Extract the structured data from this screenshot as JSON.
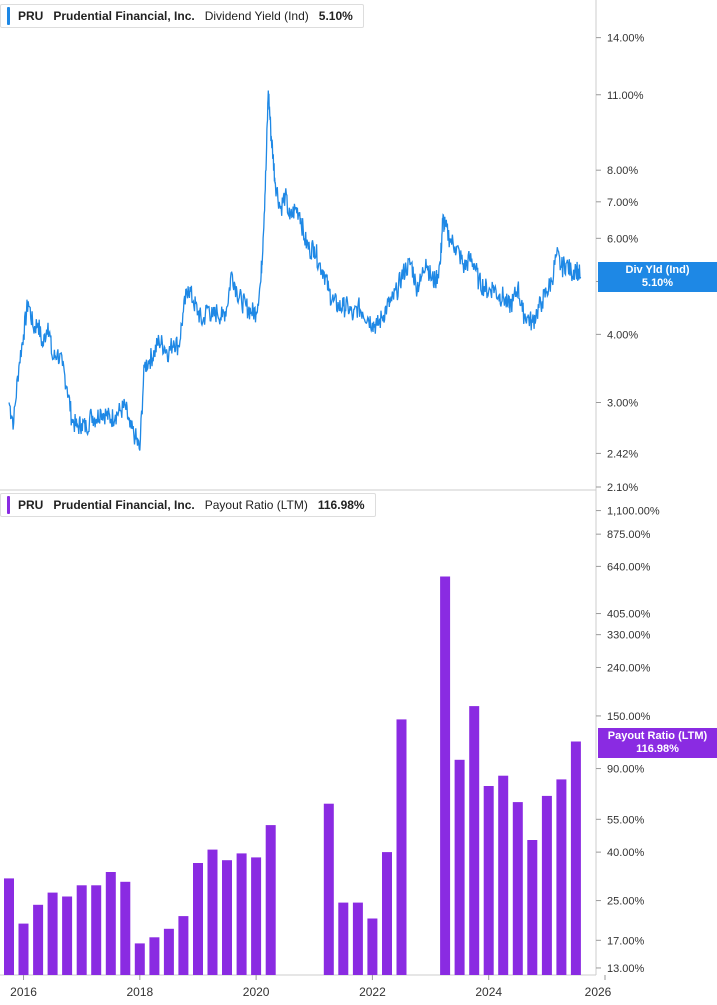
{
  "colors": {
    "yield": "#1E88E5",
    "payout": "#8A2BE2"
  },
  "yield_legend": {
    "ticker": "PRU",
    "company": "Prudential Financial, Inc.",
    "metric": "Dividend Yield (Ind)",
    "value": "5.10%"
  },
  "payout_legend": {
    "ticker": "PRU",
    "company": "Prudential Financial, Inc.",
    "metric": "Payout Ratio (LTM)",
    "value": "116.98%"
  },
  "yield_badge": {
    "label": "Div Yld (Ind)",
    "value": "5.10%"
  },
  "payout_badge": {
    "label": "Payout Ratio (LTM)",
    "value": "116.98%"
  },
  "chart_data": [
    {
      "type": "line",
      "scale": "log",
      "series": [
        {
          "name": "Dividend Yield (Ind)",
          "points": [
            [
              2015.75,
              3.0
            ],
            [
              2015.83,
              2.75
            ],
            [
              2015.92,
              3.5
            ],
            [
              2016.0,
              4.0
            ],
            [
              2016.08,
              4.6
            ],
            [
              2016.17,
              4.1
            ],
            [
              2016.25,
              4.2
            ],
            [
              2016.33,
              3.8
            ],
            [
              2016.42,
              4.2
            ],
            [
              2016.5,
              3.6
            ],
            [
              2016.58,
              3.7
            ],
            [
              2016.67,
              3.5
            ],
            [
              2016.75,
              3.2
            ],
            [
              2016.83,
              2.8
            ],
            [
              2016.92,
              2.7
            ],
            [
              2017.0,
              2.75
            ],
            [
              2017.08,
              2.7
            ],
            [
              2017.17,
              2.85
            ],
            [
              2017.25,
              2.8
            ],
            [
              2017.33,
              2.9
            ],
            [
              2017.42,
              2.85
            ],
            [
              2017.5,
              2.8
            ],
            [
              2017.58,
              2.85
            ],
            [
              2017.67,
              2.9
            ],
            [
              2017.75,
              2.95
            ],
            [
              2017.83,
              2.7
            ],
            [
              2017.92,
              2.6
            ],
            [
              2018.0,
              2.45
            ],
            [
              2018.08,
              3.5
            ],
            [
              2018.17,
              3.6
            ],
            [
              2018.25,
              3.7
            ],
            [
              2018.33,
              3.9
            ],
            [
              2018.42,
              3.8
            ],
            [
              2018.5,
              3.7
            ],
            [
              2018.58,
              3.9
            ],
            [
              2018.67,
              3.8
            ],
            [
              2018.75,
              4.4
            ],
            [
              2018.83,
              4.9
            ],
            [
              2018.92,
              4.6
            ],
            [
              2019.0,
              4.4
            ],
            [
              2019.08,
              4.2
            ],
            [
              2019.17,
              4.5
            ],
            [
              2019.25,
              4.3
            ],
            [
              2019.33,
              4.4
            ],
            [
              2019.42,
              4.3
            ],
            [
              2019.5,
              4.5
            ],
            [
              2019.58,
              5.2
            ],
            [
              2019.67,
              4.8
            ],
            [
              2019.75,
              4.6
            ],
            [
              2019.83,
              4.5
            ],
            [
              2019.92,
              4.4
            ],
            [
              2020.0,
              4.4
            ],
            [
              2020.08,
              5.0
            ],
            [
              2020.12,
              6.0
            ],
            [
              2020.17,
              8.0
            ],
            [
              2020.21,
              11.2
            ],
            [
              2020.25,
              9.5
            ],
            [
              2020.29,
              8.5
            ],
            [
              2020.33,
              7.6
            ],
            [
              2020.42,
              6.8
            ],
            [
              2020.5,
              7.2
            ],
            [
              2020.58,
              6.5
            ],
            [
              2020.67,
              6.8
            ],
            [
              2020.75,
              6.7
            ],
            [
              2020.83,
              6.0
            ],
            [
              2020.92,
              5.7
            ],
            [
              2021.0,
              5.8
            ],
            [
              2021.08,
              5.4
            ],
            [
              2021.17,
              5.2
            ],
            [
              2021.25,
              4.8
            ],
            [
              2021.33,
              4.6
            ],
            [
              2021.42,
              4.5
            ],
            [
              2021.5,
              4.5
            ],
            [
              2021.58,
              4.5
            ],
            [
              2021.67,
              4.3
            ],
            [
              2021.75,
              4.5
            ],
            [
              2021.83,
              4.4
            ],
            [
              2021.92,
              4.3
            ],
            [
              2022.0,
              4.2
            ],
            [
              2022.08,
              4.15
            ],
            [
              2022.17,
              4.3
            ],
            [
              2022.25,
              4.5
            ],
            [
              2022.33,
              4.6
            ],
            [
              2022.42,
              4.8
            ],
            [
              2022.5,
              5.1
            ],
            [
              2022.58,
              5.3
            ],
            [
              2022.67,
              5.4
            ],
            [
              2022.75,
              4.9
            ],
            [
              2022.83,
              5.0
            ],
            [
              2022.92,
              5.5
            ],
            [
              2023.0,
              5.1
            ],
            [
              2023.08,
              5.0
            ],
            [
              2023.17,
              5.4
            ],
            [
              2023.21,
              6.5
            ],
            [
              2023.25,
              6.3
            ],
            [
              2023.33,
              6.0
            ],
            [
              2023.42,
              5.8
            ],
            [
              2023.5,
              5.6
            ],
            [
              2023.58,
              5.3
            ],
            [
              2023.67,
              5.5
            ],
            [
              2023.75,
              5.4
            ],
            [
              2023.83,
              5.0
            ],
            [
              2023.92,
              4.9
            ],
            [
              2024.0,
              4.8
            ],
            [
              2024.08,
              4.9
            ],
            [
              2024.17,
              4.7
            ],
            [
              2024.25,
              4.7
            ],
            [
              2024.33,
              4.5
            ],
            [
              2024.42,
              4.6
            ],
            [
              2024.5,
              4.9
            ],
            [
              2024.58,
              4.4
            ],
            [
              2024.67,
              4.3
            ],
            [
              2024.75,
              4.2
            ],
            [
              2024.83,
              4.4
            ],
            [
              2024.92,
              4.6
            ],
            [
              2025.0,
              4.8
            ],
            [
              2025.08,
              5.0
            ],
            [
              2025.17,
              5.6
            ],
            [
              2025.25,
              5.3
            ],
            [
              2025.33,
              5.4
            ],
            [
              2025.42,
              5.2
            ],
            [
              2025.5,
              5.3
            ],
            [
              2025.58,
              5.1
            ]
          ]
        }
      ],
      "x_range": [
        2015.75,
        2026
      ],
      "y_range": [
        2.1,
        16
      ],
      "x_ticks": [
        "2016",
        "2018",
        "2020",
        "2022",
        "2024",
        "2026"
      ],
      "y_ticks": [
        "14.00%",
        "11.00%",
        "8.00%",
        "7.00%",
        "6.00%",
        "5.00%",
        "4.00%",
        "3.00%",
        "2.42%",
        "2.10%"
      ],
      "y_tick_values": [
        14,
        11,
        8,
        7,
        6,
        5,
        4,
        3,
        2.42,
        2.1
      ]
    },
    {
      "type": "bar",
      "scale": "log",
      "series": [
        {
          "name": "Payout Ratio (LTM)",
          "x": [
            2015.75,
            2016.0,
            2016.25,
            2016.5,
            2016.75,
            2017.0,
            2017.25,
            2017.5,
            2017.75,
            2018.0,
            2018.25,
            2018.5,
            2018.75,
            2019.0,
            2019.25,
            2019.5,
            2019.75,
            2020.0,
            2020.25,
            2021.25,
            2021.5,
            2021.75,
            2022.0,
            2022.25,
            2022.5,
            2023.25,
            2023.5,
            2023.75,
            2024.0,
            2024.25,
            2024.5,
            2024.75,
            2025.0,
            2025.25,
            2025.5
          ],
          "values": [
            31,
            20,
            24,
            27,
            26,
            29,
            29,
            33,
            30,
            16.5,
            17.5,
            19,
            21.5,
            36,
            41,
            37,
            39.5,
            38,
            52,
            64,
            24.5,
            24.5,
            21,
            40,
            145,
            580,
            98,
            165,
            76,
            84,
            65,
            45,
            69,
            81,
            117
          ]
        }
      ],
      "x_range": [
        2015.75,
        2026
      ],
      "y_range": [
        12.5,
        1150
      ],
      "y_ticks": [
        "1,100.00%",
        "875.00%",
        "640.00%",
        "405.00%",
        "330.00%",
        "240.00%",
        "150.00%",
        "90.00%",
        "55.00%",
        "40.00%",
        "25.00%",
        "17.00%",
        "13.00%"
      ],
      "y_tick_values": [
        1100,
        875,
        640,
        405,
        330,
        240,
        150,
        90,
        55,
        40,
        25,
        17,
        13
      ]
    }
  ]
}
